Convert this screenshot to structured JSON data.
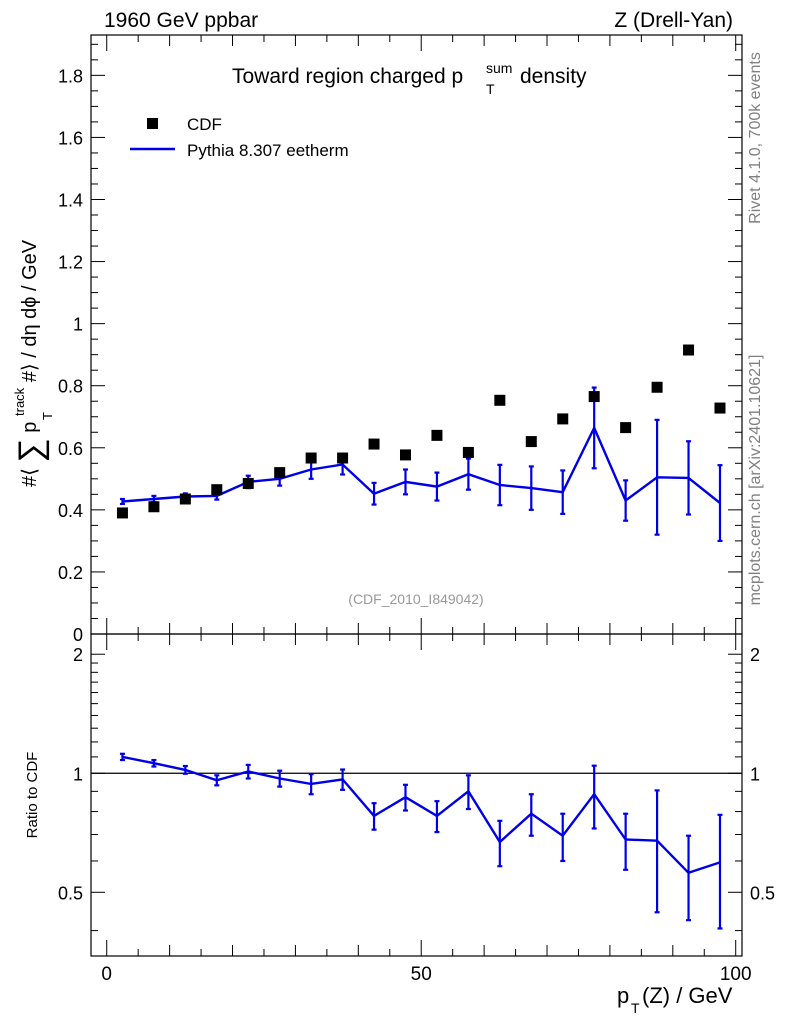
{
  "header": {
    "left": "1960 GeV ppbar",
    "right": "Z (Drell-Yan)"
  },
  "side_labels": {
    "rivet": "Rivet 4.1.0,  700k events",
    "mcplots": "mcplots.cern.ch [arXiv:2401.10621]"
  },
  "chart_data": [
    {
      "type": "scatter",
      "title_main": "Toward region charged p",
      "title_sup": "sum",
      "title_sub": "T",
      "title_tail": " density",
      "ylabel": "#⟨ ∑p_T^track #⟩ / dη dϕ / GeV",
      "ylabel_parts": {
        "pre": "#⟨",
        "sum": "∑",
        "p": "p",
        "sup": "track",
        "sub": "T",
        "post": "#⟩ / dη dϕ / GeV"
      },
      "analysis_label": "(CDF_2010_I849042)",
      "xlim": [
        -2.5,
        101
      ],
      "ylim": [
        0,
        1.93
      ],
      "yticks": [
        0,
        0.2,
        0.4,
        0.6,
        0.8,
        1,
        1.2,
        1.4,
        1.6,
        1.8
      ],
      "ytick_labels": [
        "0",
        "0.2",
        "0.4",
        "0.6",
        "0.8",
        "1",
        "1.2",
        "1.4",
        "1.6",
        "1.8"
      ],
      "legend": [
        {
          "label": "CDF",
          "kind": "marker"
        },
        {
          "label": "Pythia 8.307 eetherm",
          "kind": "line"
        }
      ],
      "x": [
        2.5,
        7.5,
        12.5,
        17.5,
        22.5,
        27.5,
        32.5,
        37.5,
        42.5,
        47.5,
        52.5,
        57.5,
        62.5,
        67.5,
        72.5,
        77.5,
        82.5,
        87.5,
        92.5,
        97.5
      ],
      "series": [
        {
          "name": "CDF",
          "values": [
            0.39,
            0.41,
            0.435,
            0.465,
            0.485,
            0.52,
            0.567,
            0.567,
            0.612,
            0.577,
            0.64,
            0.585,
            0.753,
            0.62,
            0.693,
            0.765,
            0.665,
            0.795,
            0.915,
            0.728
          ]
        },
        {
          "name": "Pythia 8.307 eetherm",
          "values": [
            0.427,
            0.435,
            0.443,
            0.445,
            0.49,
            0.5,
            0.53,
            0.546,
            0.452,
            0.49,
            0.475,
            0.515,
            0.48,
            0.47,
            0.457,
            0.664,
            0.43,
            0.505,
            0.503,
            0.422
          ],
          "errors": [
            0.008,
            0.01,
            0.01,
            0.012,
            0.02,
            0.022,
            0.03,
            0.032,
            0.035,
            0.04,
            0.045,
            0.05,
            0.065,
            0.07,
            0.07,
            0.13,
            0.065,
            0.185,
            0.118,
            0.122
          ]
        }
      ]
    },
    {
      "type": "line",
      "ylabel": "Ratio to CDF",
      "xlabel": "p_T(Z) / GeV",
      "xlabel_parts": {
        "p": "p",
        "sub": "T",
        "post": "(Z) / GeV"
      },
      "xlim": [
        -2.5,
        101
      ],
      "ylim": [
        0.345,
        2.25
      ],
      "scale": "log",
      "yticks": [
        0.5,
        1,
        2
      ],
      "ytick_labels": [
        "0.5",
        "1",
        "2"
      ],
      "xticks": [
        0,
        50,
        100
      ],
      "xtick_labels": [
        "0",
        "50",
        "100"
      ],
      "reference": 1,
      "x": [
        2.5,
        7.5,
        12.5,
        17.5,
        22.5,
        27.5,
        32.5,
        37.5,
        42.5,
        47.5,
        52.5,
        57.5,
        62.5,
        67.5,
        72.5,
        77.5,
        82.5,
        87.5,
        92.5,
        97.5
      ],
      "series": [
        {
          "name": "Pythia 8.307 eetherm / CDF",
          "values": [
            1.1,
            1.06,
            1.02,
            0.96,
            1.01,
            0.97,
            0.94,
            0.965,
            0.78,
            0.87,
            0.78,
            0.9,
            0.67,
            0.79,
            0.695,
            0.885,
            0.68,
            0.675,
            0.56,
            0.595
          ],
          "errors": [
            0.02,
            0.02,
            0.023,
            0.028,
            0.04,
            0.045,
            0.055,
            0.057,
            0.06,
            0.065,
            0.07,
            0.088,
            0.088,
            0.095,
            0.095,
            0.16,
            0.11,
            0.23,
            0.135,
            0.19
          ]
        }
      ]
    }
  ]
}
